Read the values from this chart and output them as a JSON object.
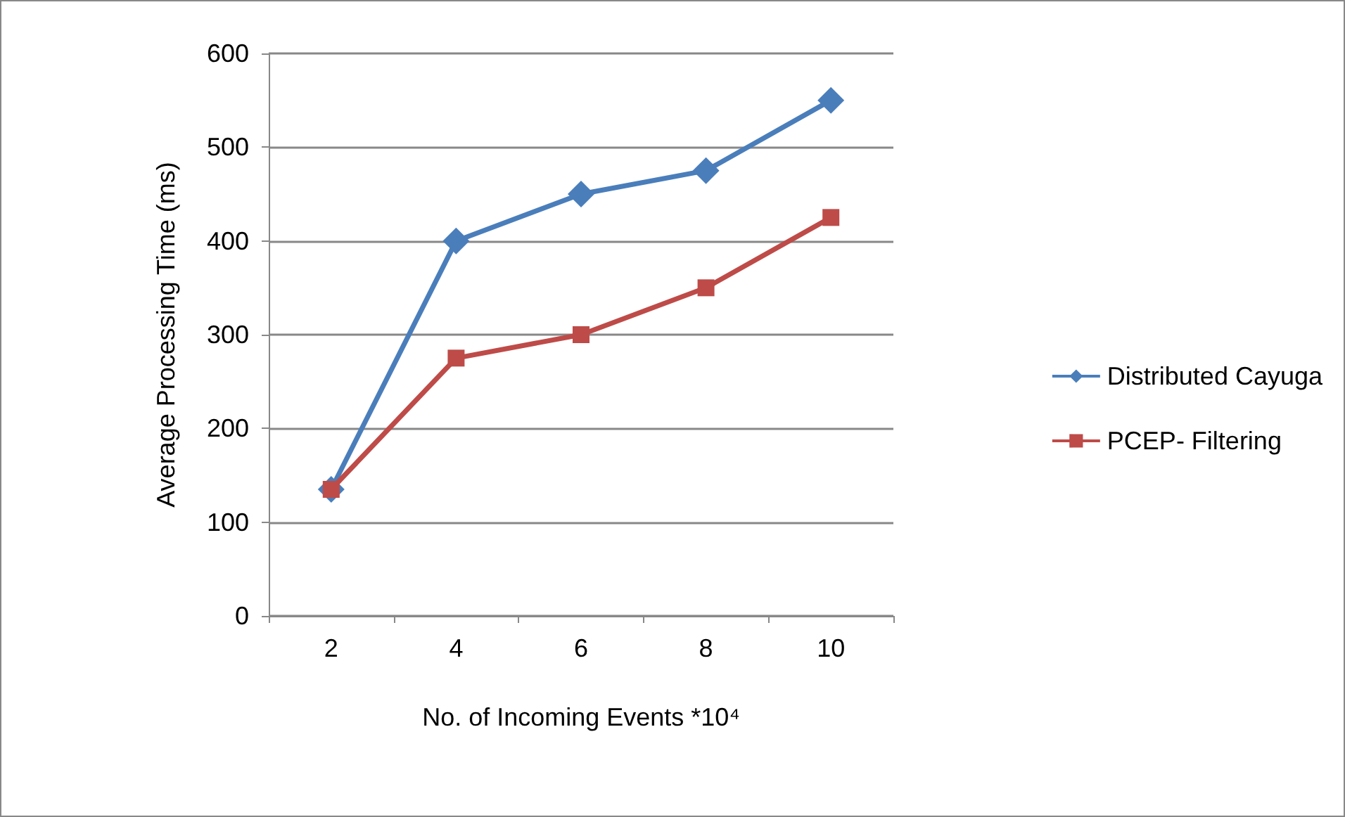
{
  "chart_data": {
    "type": "line",
    "xlabel": "No. of Incoming Events *10⁴",
    "ylabel": "Average Processing Time (ms)",
    "categories": [
      "2",
      "4",
      "6",
      "8",
      "10"
    ],
    "series": [
      {
        "name": "Distributed Cayuga",
        "color": "#4a7ebb",
        "marker": "diamond",
        "values": [
          135,
          400,
          450,
          475,
          550
        ]
      },
      {
        "name": "PCEP- Filtering",
        "color": "#be4b48",
        "marker": "square",
        "values": [
          135,
          275,
          300,
          350,
          425
        ]
      }
    ],
    "ylim": [
      0,
      600
    ],
    "yticks": [
      0,
      100,
      200,
      300,
      400,
      500,
      600
    ],
    "grid": "y",
    "legend": "right"
  }
}
